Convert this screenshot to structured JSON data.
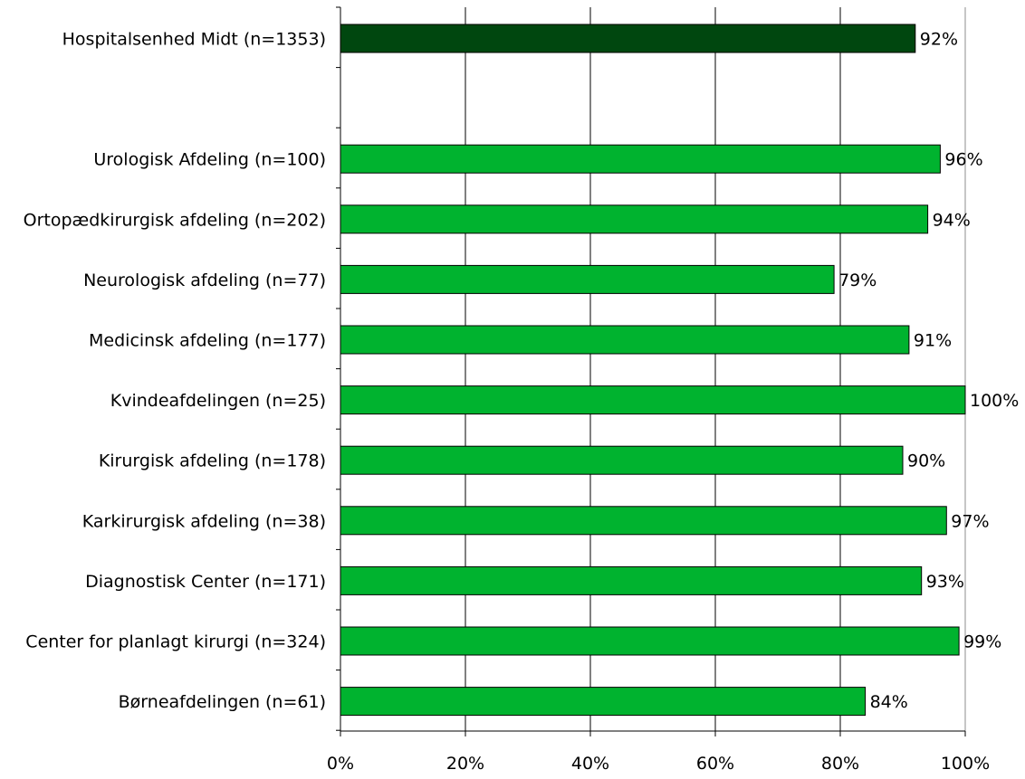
{
  "chart_data": {
    "type": "bar",
    "orientation": "horizontal",
    "categories": [
      "Hospitalsenhed Midt (n=1353)",
      "",
      "Urologisk Afdeling (n=100)",
      "Ortopædkirurgisk afdeling (n=202)",
      "Neurologisk afdeling (n=77)",
      "Medicinsk afdeling (n=177)",
      "Kvindeafdelingen (n=25)",
      "Kirurgisk afdeling (n=178)",
      "Karkirurgisk afdeling (n=38)",
      "Diagnostisk Center (n=171)",
      "Center for planlagt kirurgi (n=324)",
      "Børneafdelingen (n=61)"
    ],
    "values": [
      92,
      null,
      96,
      94,
      79,
      91,
      100,
      90,
      97,
      93,
      99,
      84
    ],
    "value_labels": [
      "92%",
      "",
      "96%",
      "94%",
      "79%",
      "91%",
      "100%",
      "90%",
      "97%",
      "93%",
      "99%",
      "84%"
    ],
    "bar_colors": [
      "#00470f",
      null,
      "#00b32f",
      "#00b32f",
      "#00b32f",
      "#00b32f",
      "#00b32f",
      "#00b32f",
      "#00b32f",
      "#00b32f",
      "#00b32f",
      "#00b32f"
    ],
    "x_ticks": [
      0,
      20,
      40,
      60,
      80,
      100
    ],
    "x_tick_labels": [
      "0%",
      "20%",
      "40%",
      "60%",
      "80%",
      "100%"
    ],
    "xlim": [
      0,
      100
    ],
    "grid": "vertical",
    "title": "",
    "xlabel": "",
    "ylabel": ""
  }
}
